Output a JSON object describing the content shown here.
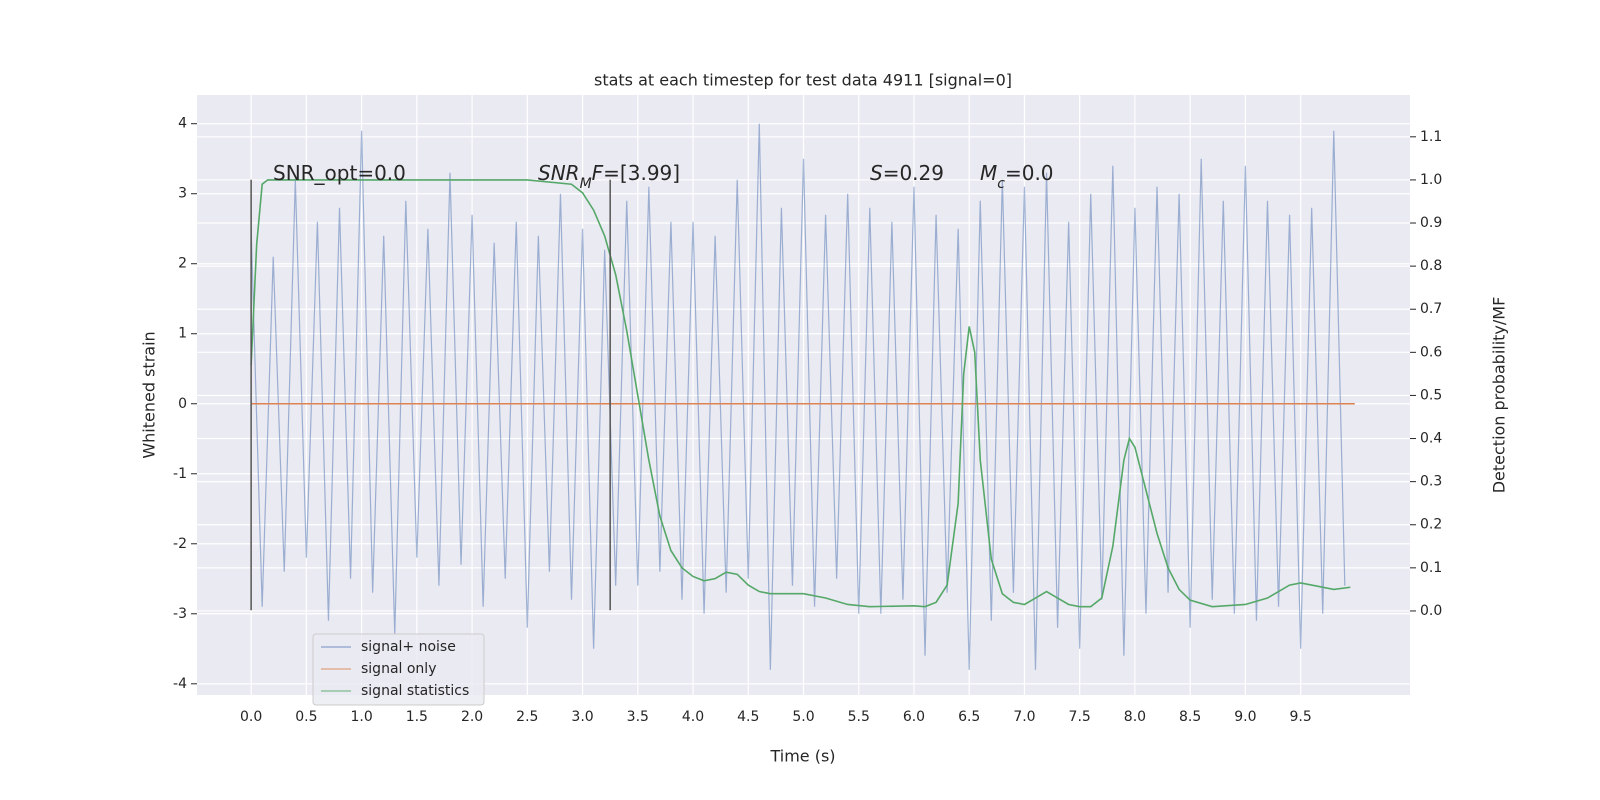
{
  "chart_data": {
    "type": "line",
    "title": "stats at each timestep for test data 4911 [signal=0]",
    "xlabel": "Time (s)",
    "ylabel": "Whitened strain",
    "y2label": "Detection probability/MF",
    "background": "#eaeaf2",
    "grid": true,
    "legend": "lower left",
    "xlim": [
      -0.49,
      10.49
    ],
    "ylim": [
      -4.16,
      4.41
    ],
    "y2lim": [
      -0.195,
      1.197
    ],
    "xticks": [
      {
        "value": 0,
        "label": "0.0"
      },
      0.5,
      {
        "value": 1,
        "label": "1.0"
      },
      1.5,
      {
        "value": 2,
        "label": "2.0"
      },
      2.5,
      {
        "value": 3,
        "label": "3.0"
      },
      3.5,
      {
        "value": 4,
        "label": "4.0"
      },
      4.5,
      {
        "value": 5,
        "label": "5.0"
      },
      5.5,
      {
        "value": 6,
        "label": "6.0"
      },
      6.5,
      {
        "value": 7,
        "label": "7.0"
      },
      7.5,
      {
        "value": 8,
        "label": "8.0"
      },
      8.5,
      {
        "value": 9,
        "label": "9.0"
      },
      9.5
    ],
    "yticks": [
      -4,
      -3,
      -2,
      -1,
      0,
      1,
      2,
      3,
      4
    ],
    "y2ticks": [
      {
        "value": 0,
        "label": "0.0"
      },
      0.1,
      0.2,
      0.3,
      0.4,
      0.5,
      0.6,
      0.7,
      0.8,
      0.9,
      {
        "value": 1,
        "label": "1.0"
      },
      1.1
    ],
    "series": [
      {
        "name": "signal+ noise",
        "color": "#4c72b0",
        "alpha": 0.5,
        "x": [
          0,
          0.1,
          0.2,
          0.3,
          0.4,
          0.5,
          0.6,
          0.7,
          0.8,
          0.9,
          1,
          1.1,
          1.2,
          1.3,
          1.4,
          1.5,
          1.6,
          1.7,
          1.8,
          1.9,
          2,
          2.1,
          2.2,
          2.3,
          2.4,
          2.5,
          2.6,
          2.7,
          2.8,
          2.9,
          3,
          3.1,
          3.2,
          3.3,
          3.4,
          3.5,
          3.6,
          3.7,
          3.8,
          3.9,
          4,
          4.1,
          4.2,
          4.3,
          4.4,
          4.5,
          4.6,
          4.7,
          4.8,
          4.9,
          5,
          5.1,
          5.2,
          5.3,
          5.4,
          5.5,
          5.6,
          5.7,
          5.8,
          5.9,
          6,
          6.1,
          6.2,
          6.3,
          6.4,
          6.5,
          6.6,
          6.7,
          6.8,
          6.9,
          7,
          7.1,
          7.2,
          7.3,
          7.4,
          7.5,
          7.6,
          7.7,
          7.8,
          7.9,
          8,
          8.1,
          8.2,
          8.3,
          8.4,
          8.5,
          8.6,
          8.7,
          8.8,
          8.9,
          9,
          9.1,
          9.2,
          9.3,
          9.4,
          9.5,
          9.6,
          9.7,
          9.8,
          9.9
        ],
        "values": [
          2.5,
          -2.9,
          2.1,
          -2.4,
          3.2,
          -2.2,
          2.6,
          -3.1,
          2.8,
          -2.5,
          3.9,
          -2.7,
          2.4,
          -3.3,
          2.9,
          -2.2,
          2.5,
          -2.6,
          3.3,
          -2.3,
          2.7,
          -2.9,
          2.3,
          -2.5,
          2.6,
          -3.2,
          2.4,
          -2.4,
          3.0,
          -2.8,
          2.5,
          -3.5,
          2.2,
          -2.6,
          2.9,
          -2.6,
          3.1,
          -2.4,
          2.6,
          -2.8,
          2.6,
          -3.0,
          2.4,
          -2.7,
          3.2,
          -2.5,
          4.0,
          -3.8,
          2.8,
          -2.6,
          3.5,
          -2.9,
          2.7,
          -2.5,
          3.0,
          -3.0,
          2.8,
          -3.0,
          2.6,
          -2.8,
          3.1,
          -3.6,
          2.7,
          -2.7,
          2.5,
          -3.8,
          2.9,
          -3.1,
          3.2,
          -2.7,
          3.1,
          -3.8,
          3.3,
          -3.2,
          2.6,
          -3.5,
          3.0,
          -2.8,
          3.4,
          -3.6,
          2.8,
          -3.0,
          3.1,
          -2.7,
          3.0,
          -3.2,
          3.5,
          -2.8,
          2.9,
          -3.0,
          3.4,
          -3.1,
          2.9,
          -2.9,
          2.7,
          -3.5,
          2.8,
          -3.0,
          3.9,
          -2.6
        ]
      },
      {
        "name": "signal only",
        "color": "#dd8452",
        "x": [
          0,
          9.99
        ],
        "values": [
          0,
          0
        ]
      },
      {
        "name": "signal statistics",
        "color": "#55a868",
        "axis": "y2",
        "x": [
          0,
          0.05,
          0.1,
          0.15,
          0.5,
          1,
          2,
          2.5,
          2.9,
          3,
          3.1,
          3.2,
          3.3,
          3.4,
          3.5,
          3.6,
          3.7,
          3.8,
          3.9,
          4,
          4.1,
          4.2,
          4.3,
          4.4,
          4.5,
          4.6,
          4.7,
          4.8,
          5,
          5.2,
          5.4,
          5.6,
          6,
          6.1,
          6.2,
          6.3,
          6.4,
          6.45,
          6.5,
          6.55,
          6.6,
          6.7,
          6.8,
          6.9,
          7,
          7.1,
          7.2,
          7.3,
          7.4,
          7.5,
          7.6,
          7.7,
          7.8,
          7.9,
          7.95,
          8,
          8.1,
          8.2,
          8.3,
          8.4,
          8.5,
          8.7,
          9,
          9.2,
          9.4,
          9.5,
          9.6,
          9.8,
          9.95
        ],
        "values": [
          0.57,
          0.85,
          0.99,
          1.0,
          1.0,
          1.0,
          1.0,
          1.0,
          0.99,
          0.97,
          0.93,
          0.87,
          0.78,
          0.65,
          0.5,
          0.35,
          0.22,
          0.14,
          0.1,
          0.08,
          0.07,
          0.075,
          0.09,
          0.085,
          0.06,
          0.045,
          0.04,
          0.04,
          0.04,
          0.03,
          0.015,
          0.01,
          0.012,
          0.01,
          0.02,
          0.06,
          0.25,
          0.55,
          0.66,
          0.6,
          0.35,
          0.12,
          0.04,
          0.02,
          0.015,
          0.03,
          0.045,
          0.03,
          0.015,
          0.01,
          0.01,
          0.03,
          0.15,
          0.35,
          0.4,
          0.38,
          0.28,
          0.18,
          0.1,
          0.05,
          0.025,
          0.01,
          0.015,
          0.03,
          0.06,
          0.065,
          0.06,
          0.05,
          0.055
        ]
      }
    ],
    "vlines": [
      {
        "x": 0,
        "ymin": -2.95,
        "ymax": 3.2
      },
      {
        "x": 3.25,
        "ymin": -2.95,
        "ymax": 3.2
      }
    ],
    "annotations": [
      [
        {
          "text": "SNR_opt=0.0"
        }
      ],
      [
        {
          "text": "SNR",
          "italic": true
        },
        {
          "text": "M",
          "italic": true,
          "sub": true
        },
        {
          "text": "F",
          "italic": true
        },
        {
          "text": "=[3.99]"
        }
      ],
      [
        {
          "text": "S",
          "italic": true
        },
        {
          "text": "=0.29"
        }
      ],
      [
        {
          "text": "M",
          "italic": true
        },
        {
          "text": "c",
          "italic": true,
          "sub": true
        },
        {
          "text": "=0.0"
        }
      ]
    ]
  }
}
